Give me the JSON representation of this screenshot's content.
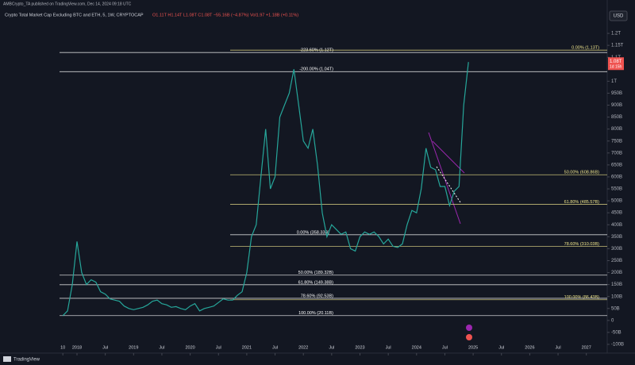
{
  "header": {
    "publisher": "AMBCrypto_TA published on TradingView.com, Dec 14, 2024 09:18 UTC",
    "brand": "TradingView"
  },
  "chart_data": {
    "type": "line",
    "title": "Crypto Total Market Cap Excluding BTC and ETH, 5, 1W, CRYPTOCAP",
    "ohlc_text": "O1.11T H1.14T L1.08T C1.08T −55.16B (−4.87%) Vol1.97 +1.18B (+0.11%)",
    "currency": "USD",
    "last_price": {
      "value": 1080,
      "label": "1.08T"
    },
    "countdown": "1d 15h",
    "x": [
      "2017-10",
      "2017-11",
      "2017-12",
      "2018-01",
      "2018-02",
      "2018-03",
      "2018-04",
      "2018-05",
      "2018-06",
      "2018-07",
      "2018-08",
      "2018-09",
      "2018-10",
      "2018-11",
      "2018-12",
      "2019-01",
      "2019-02",
      "2019-03",
      "2019-04",
      "2019-05",
      "2019-06",
      "2019-07",
      "2019-08",
      "2019-09",
      "2019-10",
      "2019-11",
      "2019-12",
      "2020-01",
      "2020-02",
      "2020-03",
      "2020-04",
      "2020-05",
      "2020-06",
      "2020-07",
      "2020-08",
      "2020-09",
      "2020-10",
      "2020-11",
      "2020-12",
      "2021-01",
      "2021-02",
      "2021-03",
      "2021-04",
      "2021-05",
      "2021-06",
      "2021-07",
      "2021-08",
      "2021-09",
      "2021-10",
      "2021-11",
      "2021-12",
      "2022-01",
      "2022-02",
      "2022-03",
      "2022-04",
      "2022-05",
      "2022-06",
      "2022-07",
      "2022-08",
      "2022-09",
      "2022-10",
      "2022-11",
      "2022-12",
      "2023-01",
      "2023-02",
      "2023-03",
      "2023-04",
      "2023-05",
      "2023-06",
      "2023-07",
      "2023-08",
      "2023-09",
      "2023-10",
      "2023-11",
      "2023-12",
      "2024-01",
      "2024-02",
      "2024-03",
      "2024-04",
      "2024-05",
      "2024-06",
      "2024-07",
      "2024-08",
      "2024-09",
      "2024-10",
      "2024-11",
      "2024-12"
    ],
    "series": [
      {
        "name": "Total Market Cap Excluding BTC and ETH",
        "color": "#26a69a",
        "values": [
          20,
          40,
          150,
          330,
          200,
          150,
          170,
          160,
          120,
          110,
          90,
          85,
          80,
          60,
          50,
          45,
          50,
          55,
          65,
          80,
          85,
          70,
          65,
          55,
          58,
          50,
          45,
          60,
          70,
          40,
          50,
          55,
          60,
          75,
          90,
          85,
          85,
          105,
          120,
          200,
          350,
          400,
          600,
          800,
          550,
          600,
          850,
          900,
          950,
          1050,
          900,
          750,
          720,
          800,
          650,
          450,
          350,
          400,
          380,
          360,
          370,
          300,
          290,
          350,
          370,
          360,
          370,
          350,
          320,
          340,
          310,
          305,
          320,
          400,
          460,
          450,
          550,
          720,
          640,
          630,
          560,
          560,
          480,
          540,
          560,
          900,
          1080
        ]
      }
    ],
    "ylim": [
      -110,
      1240
    ],
    "yticks": [
      {
        "value": 1200,
        "label": "1.2T"
      },
      {
        "value": 1150,
        "label": "1.15T"
      },
      {
        "value": 1100,
        "label": "1.1T"
      },
      {
        "value": 1000,
        "label": "1T"
      },
      {
        "value": 950,
        "label": "950B"
      },
      {
        "value": 900,
        "label": "900B"
      },
      {
        "value": 850,
        "label": "850B"
      },
      {
        "value": 800,
        "label": "800B"
      },
      {
        "value": 750,
        "label": "750B"
      },
      {
        "value": 700,
        "label": "700B"
      },
      {
        "value": 650,
        "label": "650B"
      },
      {
        "value": 600,
        "label": "600B"
      },
      {
        "value": 550,
        "label": "550B"
      },
      {
        "value": 500,
        "label": "500B"
      },
      {
        "value": 450,
        "label": "450B"
      },
      {
        "value": 400,
        "label": "400B"
      },
      {
        "value": 350,
        "label": "350B"
      },
      {
        "value": 300,
        "label": "300B"
      },
      {
        "value": 250,
        "label": "250B"
      },
      {
        "value": 200,
        "label": "200B"
      },
      {
        "value": 150,
        "label": "150B"
      },
      {
        "value": 100,
        "label": "100B"
      },
      {
        "value": 50,
        "label": "50B"
      },
      0,
      {
        "value": -50,
        "label": "-50B"
      },
      {
        "value": -100,
        "label": "-100B"
      }
    ],
    "xticks": [
      {
        "value": "2017-10",
        "label": "10"
      },
      {
        "value": "2018-01",
        "label": "2018"
      },
      {
        "value": "2018-07",
        "label": "Jul"
      },
      {
        "value": "2019-01",
        "label": "2019"
      },
      {
        "value": "2019-07",
        "label": "Jul"
      },
      {
        "value": "2020-01",
        "label": "2020"
      },
      {
        "value": "2020-07",
        "label": "Jul"
      },
      {
        "value": "2021-01",
        "label": "2021"
      },
      {
        "value": "2021-07",
        "label": "Jul"
      },
      {
        "value": "2022-01",
        "label": "2022"
      },
      {
        "value": "2022-07",
        "label": "Jul"
      },
      {
        "value": "2023-01",
        "label": "2023"
      },
      {
        "value": "2023-07",
        "label": "Jul"
      },
      {
        "value": "2024-01",
        "label": "2024"
      },
      {
        "value": "2024-07",
        "label": "Jul"
      },
      {
        "value": "2025-01",
        "label": "2025"
      },
      {
        "value": "2025-07",
        "label": "Jul"
      },
      {
        "value": "2026-01",
        "label": "2026"
      },
      {
        "value": "2026-07",
        "label": "Jul"
      },
      {
        "value": "2027-01",
        "label": "2027"
      }
    ],
    "fib_levels": [
      {
        "value": 1120,
        "label": "-223.60% (1.12T)",
        "color": "#ffffff"
      },
      {
        "value": 1040,
        "label": "-200.00% (1.04T)",
        "color": "#ffffff"
      },
      {
        "value": 358.33,
        "label": "0.00% (358.33B)",
        "color": "#ffffff"
      },
      {
        "value": 189.32,
        "label": "50.00% (189.32B)",
        "color": "#ffffff"
      },
      {
        "value": 149.38,
        "label": "61.80% (149.38B)",
        "color": "#ffffff"
      },
      {
        "value": 92.53,
        "label": "78.60% (92.53B)",
        "color": "#ffffff"
      },
      {
        "value": 20.11,
        "label": "100.00% (20.11B)",
        "color": "#ffffff"
      },
      {
        "value": 1130,
        "label": "0.00% (1.13T)",
        "color": "#f0e68c"
      },
      {
        "value": 608.86,
        "label": "50.00% (608.86B)",
        "color": "#f0e68c"
      },
      {
        "value": 485.57,
        "label": "61.80% (485.57B)",
        "color": "#f0e68c"
      },
      {
        "value": 310.03,
        "label": "78.60% (310.03B)",
        "color": "#f0e68c"
      },
      {
        "value": 86.43,
        "label": "100.00% (86.43B)",
        "color": "#f0e68c"
      }
    ]
  }
}
